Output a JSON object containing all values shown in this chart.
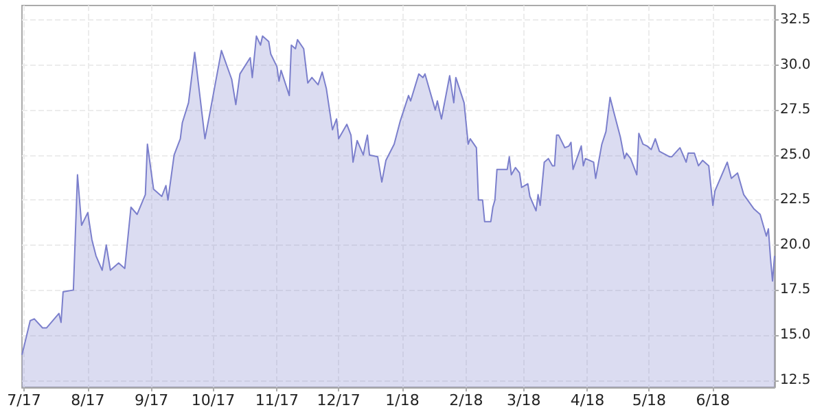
{
  "chart_data": {
    "type": "area",
    "x": [
      "2017-06-30",
      "2017-07-04",
      "2017-07-06",
      "2017-07-10",
      "2017-07-12",
      "2017-07-15",
      "2017-07-18",
      "2017-07-19",
      "2017-07-20",
      "2017-07-25",
      "2017-07-27",
      "2017-07-29",
      "2017-08-01",
      "2017-08-03",
      "2017-08-05",
      "2017-08-08",
      "2017-08-10",
      "2017-08-12",
      "2017-08-16",
      "2017-08-19",
      "2017-08-22",
      "2017-08-25",
      "2017-08-29",
      "2017-08-30",
      "2017-09-02",
      "2017-09-06",
      "2017-09-08",
      "2017-09-09",
      "2017-09-12",
      "2017-09-15",
      "2017-09-16",
      "2017-09-19",
      "2017-09-22",
      "2017-09-27",
      "2017-09-29",
      "2017-10-05",
      "2017-10-10",
      "2017-10-12",
      "2017-10-14",
      "2017-10-19",
      "2017-10-20",
      "2017-10-22",
      "2017-10-24",
      "2017-10-25",
      "2017-10-28",
      "2017-10-29",
      "2017-11-01",
      "2017-11-02",
      "2017-11-03",
      "2017-11-07",
      "2017-11-08",
      "2017-11-10",
      "2017-11-11",
      "2017-11-14",
      "2017-11-16",
      "2017-11-18",
      "2017-11-21",
      "2017-11-23",
      "2017-11-25",
      "2017-11-28",
      "2017-11-30",
      "2017-12-01",
      "2017-12-05",
      "2017-12-07",
      "2017-12-08",
      "2017-12-10",
      "2017-12-13",
      "2017-12-14",
      "2017-12-15",
      "2017-12-16",
      "2017-12-20",
      "2017-12-22",
      "2017-12-24",
      "2017-12-28",
      "2017-12-31",
      "2018-01-04",
      "2018-01-05",
      "2018-01-09",
      "2018-01-11",
      "2018-01-12",
      "2018-01-17",
      "2018-01-18",
      "2018-01-20",
      "2018-01-24",
      "2018-01-26",
      "2018-01-27",
      "2018-01-31",
      "2018-02-02",
      "2018-02-03",
      "2018-02-06",
      "2018-02-07",
      "2018-02-09",
      "2018-02-10",
      "2018-02-13",
      "2018-02-14",
      "2018-02-15",
      "2018-02-16",
      "2018-02-21",
      "2018-02-22",
      "2018-02-23",
      "2018-02-25",
      "2018-02-27",
      "2018-02-28",
      "2018-03-03",
      "2018-03-04",
      "2018-03-07",
      "2018-03-08",
      "2018-03-09",
      "2018-03-11",
      "2018-03-13",
      "2018-03-15",
      "2018-03-16",
      "2018-03-17",
      "2018-03-18",
      "2018-03-21",
      "2018-03-23",
      "2018-03-24",
      "2018-03-25",
      "2018-03-29",
      "2018-03-30",
      "2018-03-31",
      "2018-04-04",
      "2018-04-05",
      "2018-04-08",
      "2018-04-10",
      "2018-04-12",
      "2018-04-14",
      "2018-04-17",
      "2018-04-19",
      "2018-04-20",
      "2018-04-22",
      "2018-04-25",
      "2018-04-26",
      "2018-04-28",
      "2018-04-30",
      "2018-05-02",
      "2018-05-04",
      "2018-05-06",
      "2018-05-11",
      "2018-05-12",
      "2018-05-16",
      "2018-05-19",
      "2018-05-20",
      "2018-05-23",
      "2018-05-25",
      "2018-05-27",
      "2018-05-30",
      "2018-06-01",
      "2018-06-02",
      "2018-06-08",
      "2018-06-10",
      "2018-06-13",
      "2018-06-16",
      "2018-06-21",
      "2018-06-24",
      "2018-06-27",
      "2018-06-28",
      "2018-06-29",
      "2018-06-30",
      "2018-07-01"
    ],
    "series": [
      {
        "color": "#7b7fcc",
        "values": [
          13.9,
          15.8,
          15.9,
          15.4,
          15.4,
          15.8,
          16.2,
          15.7,
          17.4,
          17.5,
          23.9,
          21.1,
          21.8,
          20.3,
          19.4,
          18.6,
          20.0,
          18.6,
          19.0,
          18.7,
          22.1,
          21.7,
          22.8,
          25.6,
          23.1,
          22.7,
          23.3,
          22.5,
          25.0,
          25.9,
          26.8,
          27.9,
          30.7,
          25.9,
          27.1,
          30.8,
          29.2,
          27.8,
          29.5,
          30.4,
          29.3,
          31.6,
          31.1,
          31.6,
          31.3,
          30.6,
          29.9,
          29.1,
          29.7,
          28.3,
          31.1,
          30.9,
          31.4,
          30.9,
          29.0,
          29.3,
          28.9,
          29.6,
          28.7,
          26.4,
          27.0,
          25.9,
          26.7,
          26.1,
          24.6,
          25.8,
          25.0,
          25.6,
          26.1,
          25.0,
          24.9,
          23.5,
          24.7,
          25.6,
          26.9,
          28.3,
          28.0,
          29.5,
          29.3,
          29.5,
          27.5,
          28.0,
          27.0,
          29.4,
          27.9,
          29.3,
          27.9,
          25.6,
          25.9,
          25.4,
          22.5,
          22.5,
          21.3,
          21.3,
          22.1,
          22.5,
          24.2,
          24.2,
          24.9,
          23.9,
          24.3,
          24.0,
          23.2,
          23.4,
          22.7,
          21.9,
          22.8,
          22.2,
          24.6,
          24.8,
          24.4,
          24.4,
          26.1,
          26.1,
          25.4,
          25.5,
          25.7,
          24.2,
          25.5,
          24.4,
          24.8,
          24.6,
          23.7,
          25.6,
          26.3,
          28.2,
          27.3,
          26.0,
          24.8,
          25.1,
          24.8,
          23.9,
          26.2,
          25.6,
          25.5,
          25.3,
          25.9,
          25.2,
          24.9,
          24.9,
          25.4,
          24.6,
          25.1,
          25.1,
          24.4,
          24.7,
          24.4,
          22.2,
          23.0,
          24.6,
          23.7,
          24.0,
          22.8,
          22.0,
          21.7,
          20.5,
          20.9,
          19.3,
          18.0,
          19.4
        ]
      }
    ],
    "xlim": [
      "2017-06-30",
      "2018-07-01"
    ],
    "xticks": [
      {
        "value": "2017-07-01",
        "label": "7/17"
      },
      {
        "value": "2017-08-01",
        "label": "8/17"
      },
      {
        "value": "2017-09-01",
        "label": "9/17"
      },
      {
        "value": "2017-10-01",
        "label": "10/17"
      },
      {
        "value": "2017-11-01",
        "label": "11/17"
      },
      {
        "value": "2017-12-01",
        "label": "12/17"
      },
      {
        "value": "2018-01-01",
        "label": "1/18"
      },
      {
        "value": "2018-02-01",
        "label": "2/18"
      },
      {
        "value": "2018-03-01",
        "label": "3/18"
      },
      {
        "value": "2018-04-01",
        "label": "4/18"
      },
      {
        "value": "2018-05-01",
        "label": "5/18"
      },
      {
        "value": "2018-06-01",
        "label": "6/18"
      }
    ],
    "ylim": [
      12.1,
      33.3
    ],
    "yticks": [
      12.5,
      {
        "value": 15,
        "label": "15.0"
      },
      17.5,
      {
        "value": 20,
        "label": "20.0"
      },
      22.5,
      {
        "value": 25,
        "label": "25.0"
      },
      27.5,
      {
        "value": 30,
        "label": "30.0"
      },
      32.5
    ],
    "grid": true,
    "marker": "none",
    "line_style": "solid"
  }
}
